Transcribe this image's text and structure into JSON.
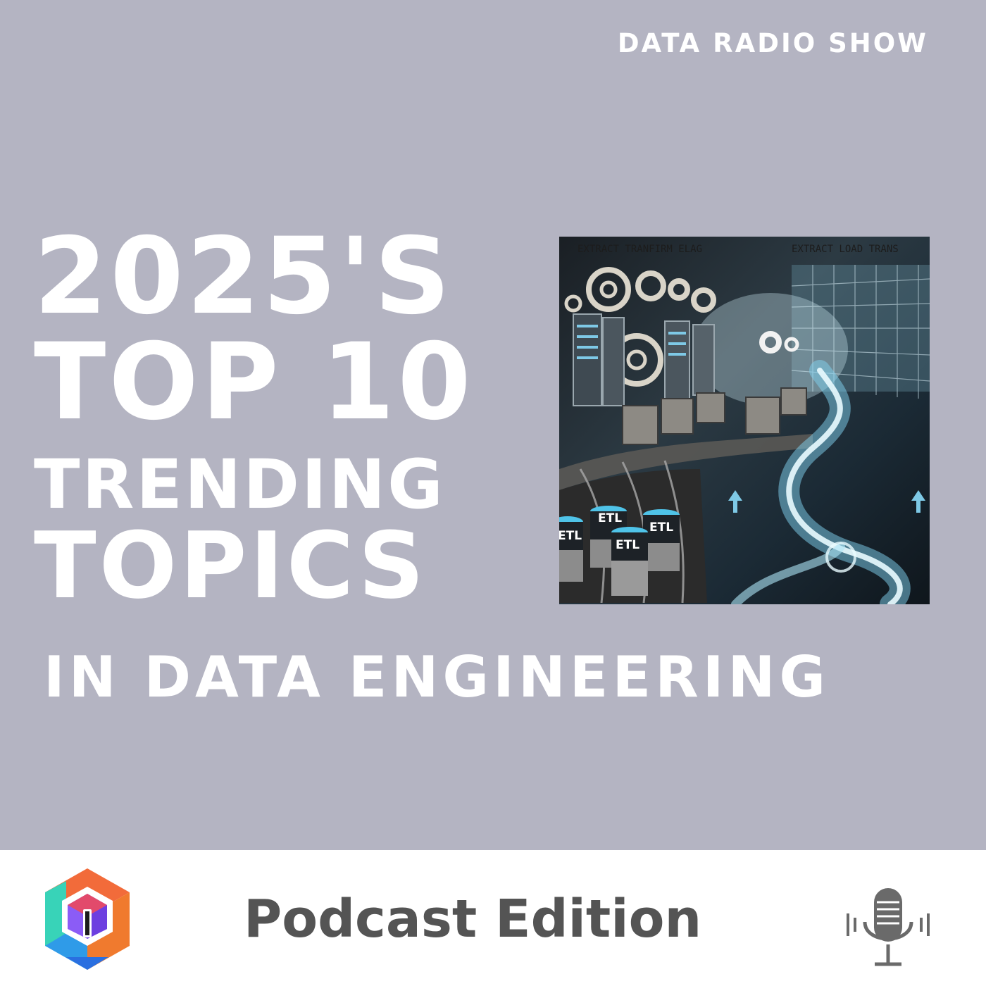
{
  "header": {
    "show_name": "DATA RADIO SHOW"
  },
  "title": {
    "line1": "2025'S",
    "line2": "TOP 10",
    "line3": "TRENDING",
    "line4": "TOPICS"
  },
  "subtitle": "IN DATA ENGINEERING",
  "illustration": {
    "label_left": "EXTRACT TRANFIRM ELAG",
    "label_right": "EXTRACT LOAD TRANS",
    "badges": [
      "ETL",
      "ETL",
      "ETL",
      "ETL"
    ]
  },
  "footer": {
    "edition": "Podcast Edition",
    "logo_icon": "hexagon-cube-logo",
    "mic_icon": "microphone-icon"
  },
  "colors": {
    "background": "#b4b4c2",
    "footer_background": "#ffffff",
    "edition_text": "#545454",
    "title_text": "#ffffff"
  }
}
